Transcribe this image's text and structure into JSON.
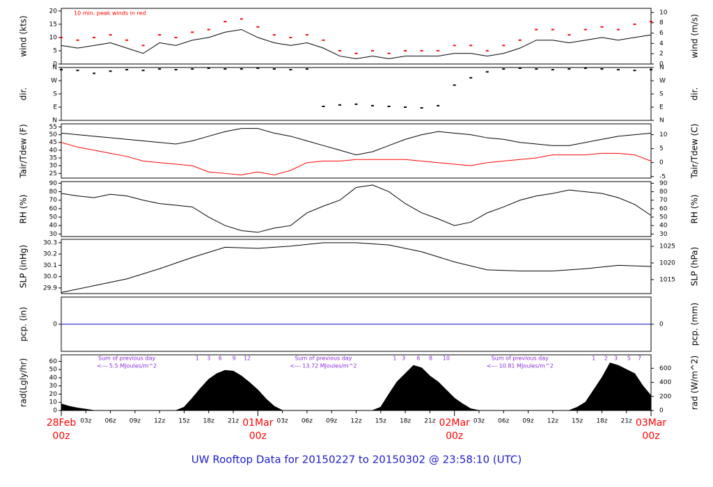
{
  "title": "UW Rooftop Data for 20150227  to  20150302 @ 23:58:10  (UTC)",
  "chart_data": [
    {
      "type": "line",
      "ylabel": "wind (kts)",
      "y2label": "wind (m/s)",
      "annotation": "10 min. peak winds in red",
      "xlim": [
        0,
        72
      ],
      "ylim": [
        0,
        21
      ],
      "yticks": [
        0,
        5,
        10,
        15,
        20
      ],
      "y2lim": [
        0,
        10.8
      ],
      "y2ticks": [
        0,
        2,
        4,
        6,
        8,
        10
      ],
      "x": [
        0,
        2,
        4,
        6,
        8,
        10,
        12,
        14,
        16,
        18,
        20,
        22,
        24,
        26,
        28,
        30,
        32,
        34,
        36,
        38,
        40,
        42,
        44,
        46,
        48,
        50,
        52,
        54,
        56,
        58,
        60,
        62,
        64,
        66,
        68,
        70,
        72
      ],
      "series": [
        {
          "color": "#000000",
          "type": "line",
          "values": [
            7,
            6,
            7,
            8,
            6,
            4,
            8,
            7,
            9,
            10,
            12,
            13,
            10,
            8,
            7,
            8,
            6,
            3,
            2,
            3,
            2,
            3,
            3,
            3,
            4,
            4,
            3,
            4,
            6,
            9,
            9,
            8,
            9,
            10,
            9,
            10,
            11
          ]
        },
        {
          "color": "#ff0000",
          "type": "scatter",
          "values": [
            10,
            9,
            10,
            11,
            9,
            7,
            11,
            10,
            12,
            13,
            16,
            17,
            14,
            11,
            10,
            11,
            9,
            5,
            4,
            5,
            4,
            5,
            5,
            5,
            7,
            7,
            5,
            7,
            9,
            13,
            13,
            11,
            13,
            14,
            13,
            15,
            16
          ]
        }
      ]
    },
    {
      "type": "scatter",
      "ylabel": "dir.",
      "y2label": "dir.",
      "xlim": [
        0,
        72
      ],
      "ylim": [
        0,
        360
      ],
      "yticks": [
        {
          "value": 0,
          "label": "N"
        },
        {
          "value": 90,
          "label": "E"
        },
        {
          "value": 180,
          "label": "S"
        },
        {
          "value": 270,
          "label": "W"
        },
        {
          "value": 360,
          "label": "N"
        }
      ],
      "y2lim": [
        0,
        360
      ],
      "y2ticks": [
        {
          "value": 0,
          "label": "N"
        },
        {
          "value": 90,
          "label": "E"
        },
        {
          "value": 180,
          "label": "S"
        },
        {
          "value": 270,
          "label": "W"
        },
        {
          "value": 360,
          "label": "N"
        }
      ],
      "x": [
        0,
        2,
        4,
        6,
        8,
        10,
        12,
        14,
        16,
        18,
        20,
        22,
        24,
        26,
        28,
        30,
        32,
        34,
        36,
        38,
        40,
        42,
        44,
        46,
        48,
        50,
        52,
        54,
        56,
        58,
        60,
        62,
        64,
        66,
        68,
        70,
        72
      ],
      "series": [
        {
          "color": "#000000",
          "type": "scatter",
          "values": [
            345,
            340,
            320,
            335,
            345,
            340,
            350,
            345,
            350,
            355,
            350,
            350,
            355,
            350,
            345,
            350,
            95,
            105,
            110,
            100,
            95,
            90,
            85,
            100,
            240,
            290,
            330,
            350,
            355,
            350,
            345,
            350,
            355,
            350,
            345,
            340,
            345
          ]
        }
      ]
    },
    {
      "type": "line",
      "ylabel": "Tair/Tdew (F)",
      "y2label": "Tair/Tdew (C)",
      "xlim": [
        0,
        72
      ],
      "ylim": [
        22,
        57
      ],
      "yticks": [
        25,
        30,
        35,
        40,
        45,
        50,
        55
      ],
      "y2lim": [
        -5.56,
        13.89
      ],
      "y2ticks": [
        -5,
        0,
        5,
        10
      ],
      "x": [
        0,
        2,
        4,
        6,
        8,
        10,
        12,
        14,
        16,
        18,
        20,
        22,
        24,
        26,
        28,
        30,
        32,
        34,
        36,
        38,
        40,
        42,
        44,
        46,
        48,
        50,
        52,
        54,
        56,
        58,
        60,
        62,
        64,
        66,
        68,
        70,
        72
      ],
      "series": [
        {
          "color": "#000000",
          "type": "line",
          "values": [
            51,
            50,
            49,
            48,
            47,
            46,
            45,
            44,
            46,
            49,
            52,
            54,
            54,
            51,
            49,
            46,
            43,
            40,
            37,
            39,
            43,
            47,
            50,
            52,
            51,
            50,
            48,
            47,
            45,
            44,
            43,
            43,
            45,
            47,
            49,
            50,
            51
          ]
        },
        {
          "color": "#ff0000",
          "type": "line",
          "values": [
            45,
            42,
            40,
            38,
            36,
            33,
            32,
            31,
            30,
            26,
            25,
            24,
            26,
            24,
            27,
            32,
            33,
            33,
            34,
            34,
            34,
            34,
            33,
            32,
            31,
            30,
            32,
            33,
            34,
            35,
            37,
            37,
            37,
            38,
            38,
            37,
            33
          ]
        }
      ]
    },
    {
      "type": "line",
      "ylabel": "RH (%)",
      "y2label": "RH (%)",
      "xlim": [
        0,
        72
      ],
      "ylim": [
        27,
        92
      ],
      "yticks": [
        30,
        40,
        50,
        60,
        70,
        80,
        90
      ],
      "y2lim": [
        27,
        92
      ],
      "y2ticks": [
        30,
        40,
        50,
        60,
        70,
        80,
        90
      ],
      "x": [
        0,
        2,
        4,
        6,
        8,
        10,
        12,
        14,
        16,
        18,
        20,
        22,
        24,
        26,
        28,
        30,
        32,
        34,
        36,
        38,
        40,
        42,
        44,
        46,
        48,
        50,
        52,
        54,
        56,
        58,
        60,
        62,
        64,
        66,
        68,
        70,
        72
      ],
      "series": [
        {
          "color": "#000000",
          "type": "line",
          "values": [
            78,
            75,
            73,
            77,
            75,
            70,
            66,
            64,
            62,
            50,
            40,
            34,
            32,
            37,
            40,
            55,
            63,
            70,
            85,
            88,
            80,
            66,
            55,
            48,
            40,
            44,
            55,
            62,
            70,
            75,
            78,
            82,
            80,
            78,
            73,
            65,
            52
          ]
        }
      ]
    },
    {
      "type": "line",
      "ylabel": "SLP (inHg)",
      "y2label": "SLP (hPa)",
      "xlim": [
        0,
        72
      ],
      "ylim": [
        29.85,
        30.33
      ],
      "yticks": [
        29.9,
        {
          "value": 30,
          "label": "30.0"
        },
        30.1,
        30.2,
        30.3
      ],
      "y2lim": [
        1010.8,
        1027.1
      ],
      "y2ticks": [
        1015,
        1020,
        1025
      ],
      "x": [
        0,
        4,
        8,
        12,
        16,
        20,
        24,
        28,
        32,
        36,
        40,
        44,
        48,
        52,
        56,
        60,
        64,
        68,
        72
      ],
      "series": [
        {
          "color": "#000000",
          "type": "line",
          "values": [
            29.86,
            29.92,
            29.98,
            30.07,
            30.17,
            30.26,
            30.25,
            30.27,
            30.3,
            30.3,
            30.28,
            30.22,
            30.13,
            30.06,
            30.05,
            30.05,
            30.07,
            30.1,
            30.09
          ]
        }
      ]
    },
    {
      "type": "line",
      "ylabel": "pcp. (in)",
      "y2label": "pcp. (mm)",
      "xlim": [
        0,
        72
      ],
      "ylim": [
        -1,
        1
      ],
      "yticks": [
        0
      ],
      "y2lim": [
        -1,
        1
      ],
      "y2ticks": [
        0
      ],
      "x": [
        0,
        72
      ],
      "series": [
        {
          "color": "#0000cc",
          "type": "line",
          "values": [
            0,
            0
          ]
        }
      ]
    },
    {
      "type": "area",
      "ylabel": "rad(Lgly/hr)",
      "y2label": "rad (W/m^2)",
      "xlim": [
        0,
        72
      ],
      "ylim": [
        0,
        68
      ],
      "yticks": [
        0,
        10,
        20,
        30,
        40,
        50,
        60
      ],
      "y2lim": [
        0,
        791
      ],
      "y2ticks": [
        0,
        200,
        400,
        600
      ],
      "x": [
        0,
        1,
        2,
        4,
        14,
        15,
        16,
        17,
        18,
        19,
        20,
        21,
        22,
        23,
        24,
        25,
        26,
        27,
        38,
        39,
        40,
        41,
        42,
        43,
        44,
        45,
        46,
        47,
        48,
        49,
        50,
        51,
        62,
        63,
        64,
        65,
        66,
        67,
        68,
        69,
        70,
        71,
        72
      ],
      "series": [
        {
          "color": "#000000",
          "type": "area",
          "values": [
            8,
            5,
            3,
            0,
            0,
            4,
            15,
            27,
            38,
            45,
            49,
            48,
            42,
            34,
            25,
            14,
            5,
            0,
            0,
            4,
            20,
            35,
            45,
            55,
            52,
            42,
            35,
            25,
            15,
            8,
            2,
            0,
            0,
            4,
            10,
            25,
            40,
            58,
            55,
            50,
            45,
            30,
            18
          ]
        }
      ],
      "hour_marks": [
        {
          "value": 16.6,
          "label": "1"
        },
        {
          "value": 18,
          "label": "3"
        },
        {
          "value": 19.4,
          "label": "6"
        },
        {
          "value": 21.1,
          "label": "9"
        },
        {
          "value": 22.7,
          "label": "12"
        },
        {
          "value": 40.7,
          "label": "1"
        },
        {
          "value": 41.8,
          "label": "3"
        },
        {
          "value": 43.6,
          "label": "6"
        },
        {
          "value": 45.1,
          "label": "8"
        },
        {
          "value": 47,
          "label": "10"
        },
        {
          "value": 65,
          "label": "1"
        },
        {
          "value": 66.5,
          "label": "2"
        },
        {
          "value": 67.7,
          "label": "3"
        },
        {
          "value": 69.3,
          "label": "5"
        },
        {
          "value": 70.6,
          "label": "7"
        }
      ],
      "day_sums": [
        {
          "label": "Sum of previous day",
          "note": "<--- 5.5 MJoules/m^2"
        },
        {
          "label": "Sum of previous day",
          "note": "<--- 13.72 MJoules/m^2"
        },
        {
          "label": "Sum of previous day",
          "note": "<--- 10.81 MJoules/m^2"
        }
      ],
      "xticks": [
        {
          "value": 3,
          "label": "03z"
        },
        {
          "value": 6,
          "label": "06z"
        },
        {
          "value": 9,
          "label": "09z"
        },
        {
          "value": 12,
          "label": "12z"
        },
        {
          "value": 15,
          "label": "15z"
        },
        {
          "value": 18,
          "label": "18z"
        },
        {
          "value": 21,
          "label": "21z"
        },
        {
          "value": 27,
          "label": "03z"
        },
        {
          "value": 30,
          "label": "06z"
        },
        {
          "value": 33,
          "label": "09z"
        },
        {
          "value": 36,
          "label": "12z"
        },
        {
          "value": 39,
          "label": "15z"
        },
        {
          "value": 42,
          "label": "18z"
        },
        {
          "value": 45,
          "label": "21z"
        },
        {
          "value": 51,
          "label": "03z"
        },
        {
          "value": 54,
          "label": "06z"
        },
        {
          "value": 57,
          "label": "09z"
        },
        {
          "value": 60,
          "label": "12z"
        },
        {
          "value": 63,
          "label": "15z"
        },
        {
          "value": 66,
          "label": "18z"
        },
        {
          "value": 69,
          "label": "21z"
        }
      ],
      "date_ticks": [
        {
          "value": 0,
          "label": "28Feb",
          "sublabel": "00z"
        },
        {
          "value": 24,
          "label": "01Mar",
          "sublabel": "00z"
        },
        {
          "value": 48,
          "label": "02Mar",
          "sublabel": "00z"
        },
        {
          "value": 72,
          "label": "03Mar",
          "sublabel": "00z"
        }
      ]
    }
  ]
}
